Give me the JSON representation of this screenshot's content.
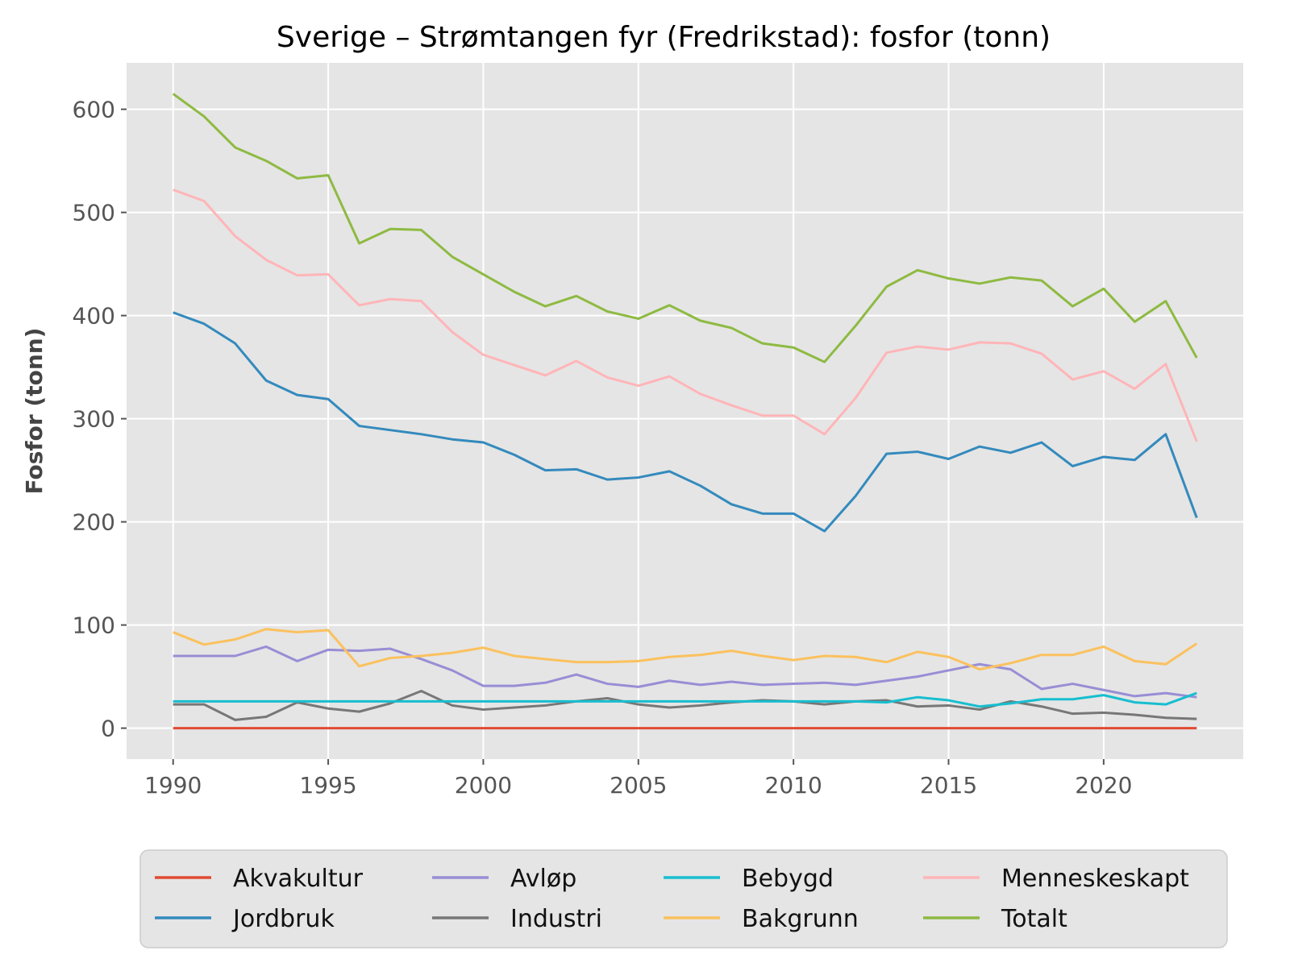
{
  "chart_data": {
    "type": "line",
    "title": "Sverige – Strømtangen fyr (Fredrikstad): fosfor (tonn)",
    "xlabel": "",
    "ylabel": "Fosfor (tonn)",
    "xlim": [
      1988.5,
      2024.5
    ],
    "ylim": [
      -30,
      645
    ],
    "xticks": [
      1990,
      1995,
      2000,
      2005,
      2010,
      2015,
      2020
    ],
    "yticks": [
      0,
      100,
      200,
      300,
      400,
      500,
      600
    ],
    "grid": true,
    "legend_position": "bottom",
    "x": [
      1990,
      1991,
      1992,
      1993,
      1994,
      1995,
      1996,
      1997,
      1998,
      1999,
      2000,
      2001,
      2002,
      2003,
      2004,
      2005,
      2006,
      2007,
      2008,
      2009,
      2010,
      2011,
      2012,
      2013,
      2014,
      2015,
      2016,
      2017,
      2018,
      2019,
      2020,
      2021,
      2022,
      2023
    ],
    "series": [
      {
        "name": "Akvakultur",
        "color": "#E24A33",
        "values": [
          0,
          0,
          0,
          0,
          0,
          0,
          0,
          0,
          0,
          0,
          0,
          0,
          0,
          0,
          0,
          0,
          0,
          0,
          0,
          0,
          0,
          0,
          0,
          0,
          0,
          0,
          0,
          0,
          0,
          0,
          0,
          0,
          0,
          0
        ]
      },
      {
        "name": "Jordbruk",
        "color": "#348ABD",
        "values": [
          403,
          392,
          373,
          337,
          323,
          319,
          293,
          289,
          285,
          280,
          277,
          265,
          250,
          251,
          241,
          243,
          249,
          235,
          217,
          208,
          208,
          191,
          225,
          266,
          268,
          261,
          273,
          267,
          277,
          254,
          263,
          260,
          285,
          204
        ]
      },
      {
        "name": "Avløp",
        "color": "#988ED5",
        "values": [
          70,
          70,
          70,
          79,
          65,
          76,
          75,
          77,
          67,
          56,
          41,
          41,
          44,
          52,
          43,
          40,
          46,
          42,
          45,
          42,
          43,
          44,
          42,
          46,
          50,
          56,
          62,
          57,
          38,
          43,
          37,
          31,
          34,
          30
        ]
      },
      {
        "name": "Industri",
        "color": "#777777",
        "values": [
          23,
          23,
          8,
          11,
          25,
          19,
          16,
          24,
          36,
          22,
          18,
          20,
          22,
          26,
          29,
          23,
          20,
          22,
          25,
          27,
          26,
          23,
          26,
          27,
          21,
          22,
          18,
          26,
          21,
          14,
          15,
          13,
          10,
          9
        ]
      },
      {
        "name": "Bebygd",
        "color": "#17BECF",
        "values": [
          26,
          26,
          26,
          26,
          26,
          26,
          26,
          26,
          26,
          26,
          26,
          26,
          26,
          26,
          26,
          26,
          26,
          26,
          26,
          26,
          26,
          26,
          26,
          25,
          30,
          27,
          21,
          24,
          28,
          28,
          32,
          25,
          23,
          34
        ]
      },
      {
        "name": "Bakgrunn",
        "color": "#FBC15E",
        "values": [
          93,
          81,
          86,
          96,
          93,
          95,
          60,
          68,
          70,
          73,
          78,
          70,
          67,
          64,
          64,
          65,
          69,
          71,
          75,
          70,
          66,
          70,
          69,
          64,
          74,
          69,
          57,
          63,
          71,
          71,
          79,
          65,
          62,
          82
        ]
      },
      {
        "name": "Menneskeskapt",
        "color": "#FFB5B8",
        "values": [
          522,
          511,
          477,
          454,
          439,
          440,
          410,
          416,
          414,
          384,
          362,
          352,
          342,
          356,
          340,
          332,
          341,
          324,
          313,
          303,
          303,
          285,
          320,
          364,
          370,
          367,
          374,
          373,
          363,
          338,
          346,
          329,
          353,
          278
        ]
      },
      {
        "name": "Totalt",
        "color": "#8EBA42",
        "values": [
          615,
          593,
          563,
          550,
          533,
          536,
          470,
          484,
          483,
          457,
          440,
          423,
          409,
          419,
          404,
          397,
          410,
          395,
          388,
          373,
          369,
          355,
          390,
          428,
          444,
          436,
          431,
          437,
          434,
          409,
          426,
          394,
          414,
          359
        ]
      }
    ]
  }
}
